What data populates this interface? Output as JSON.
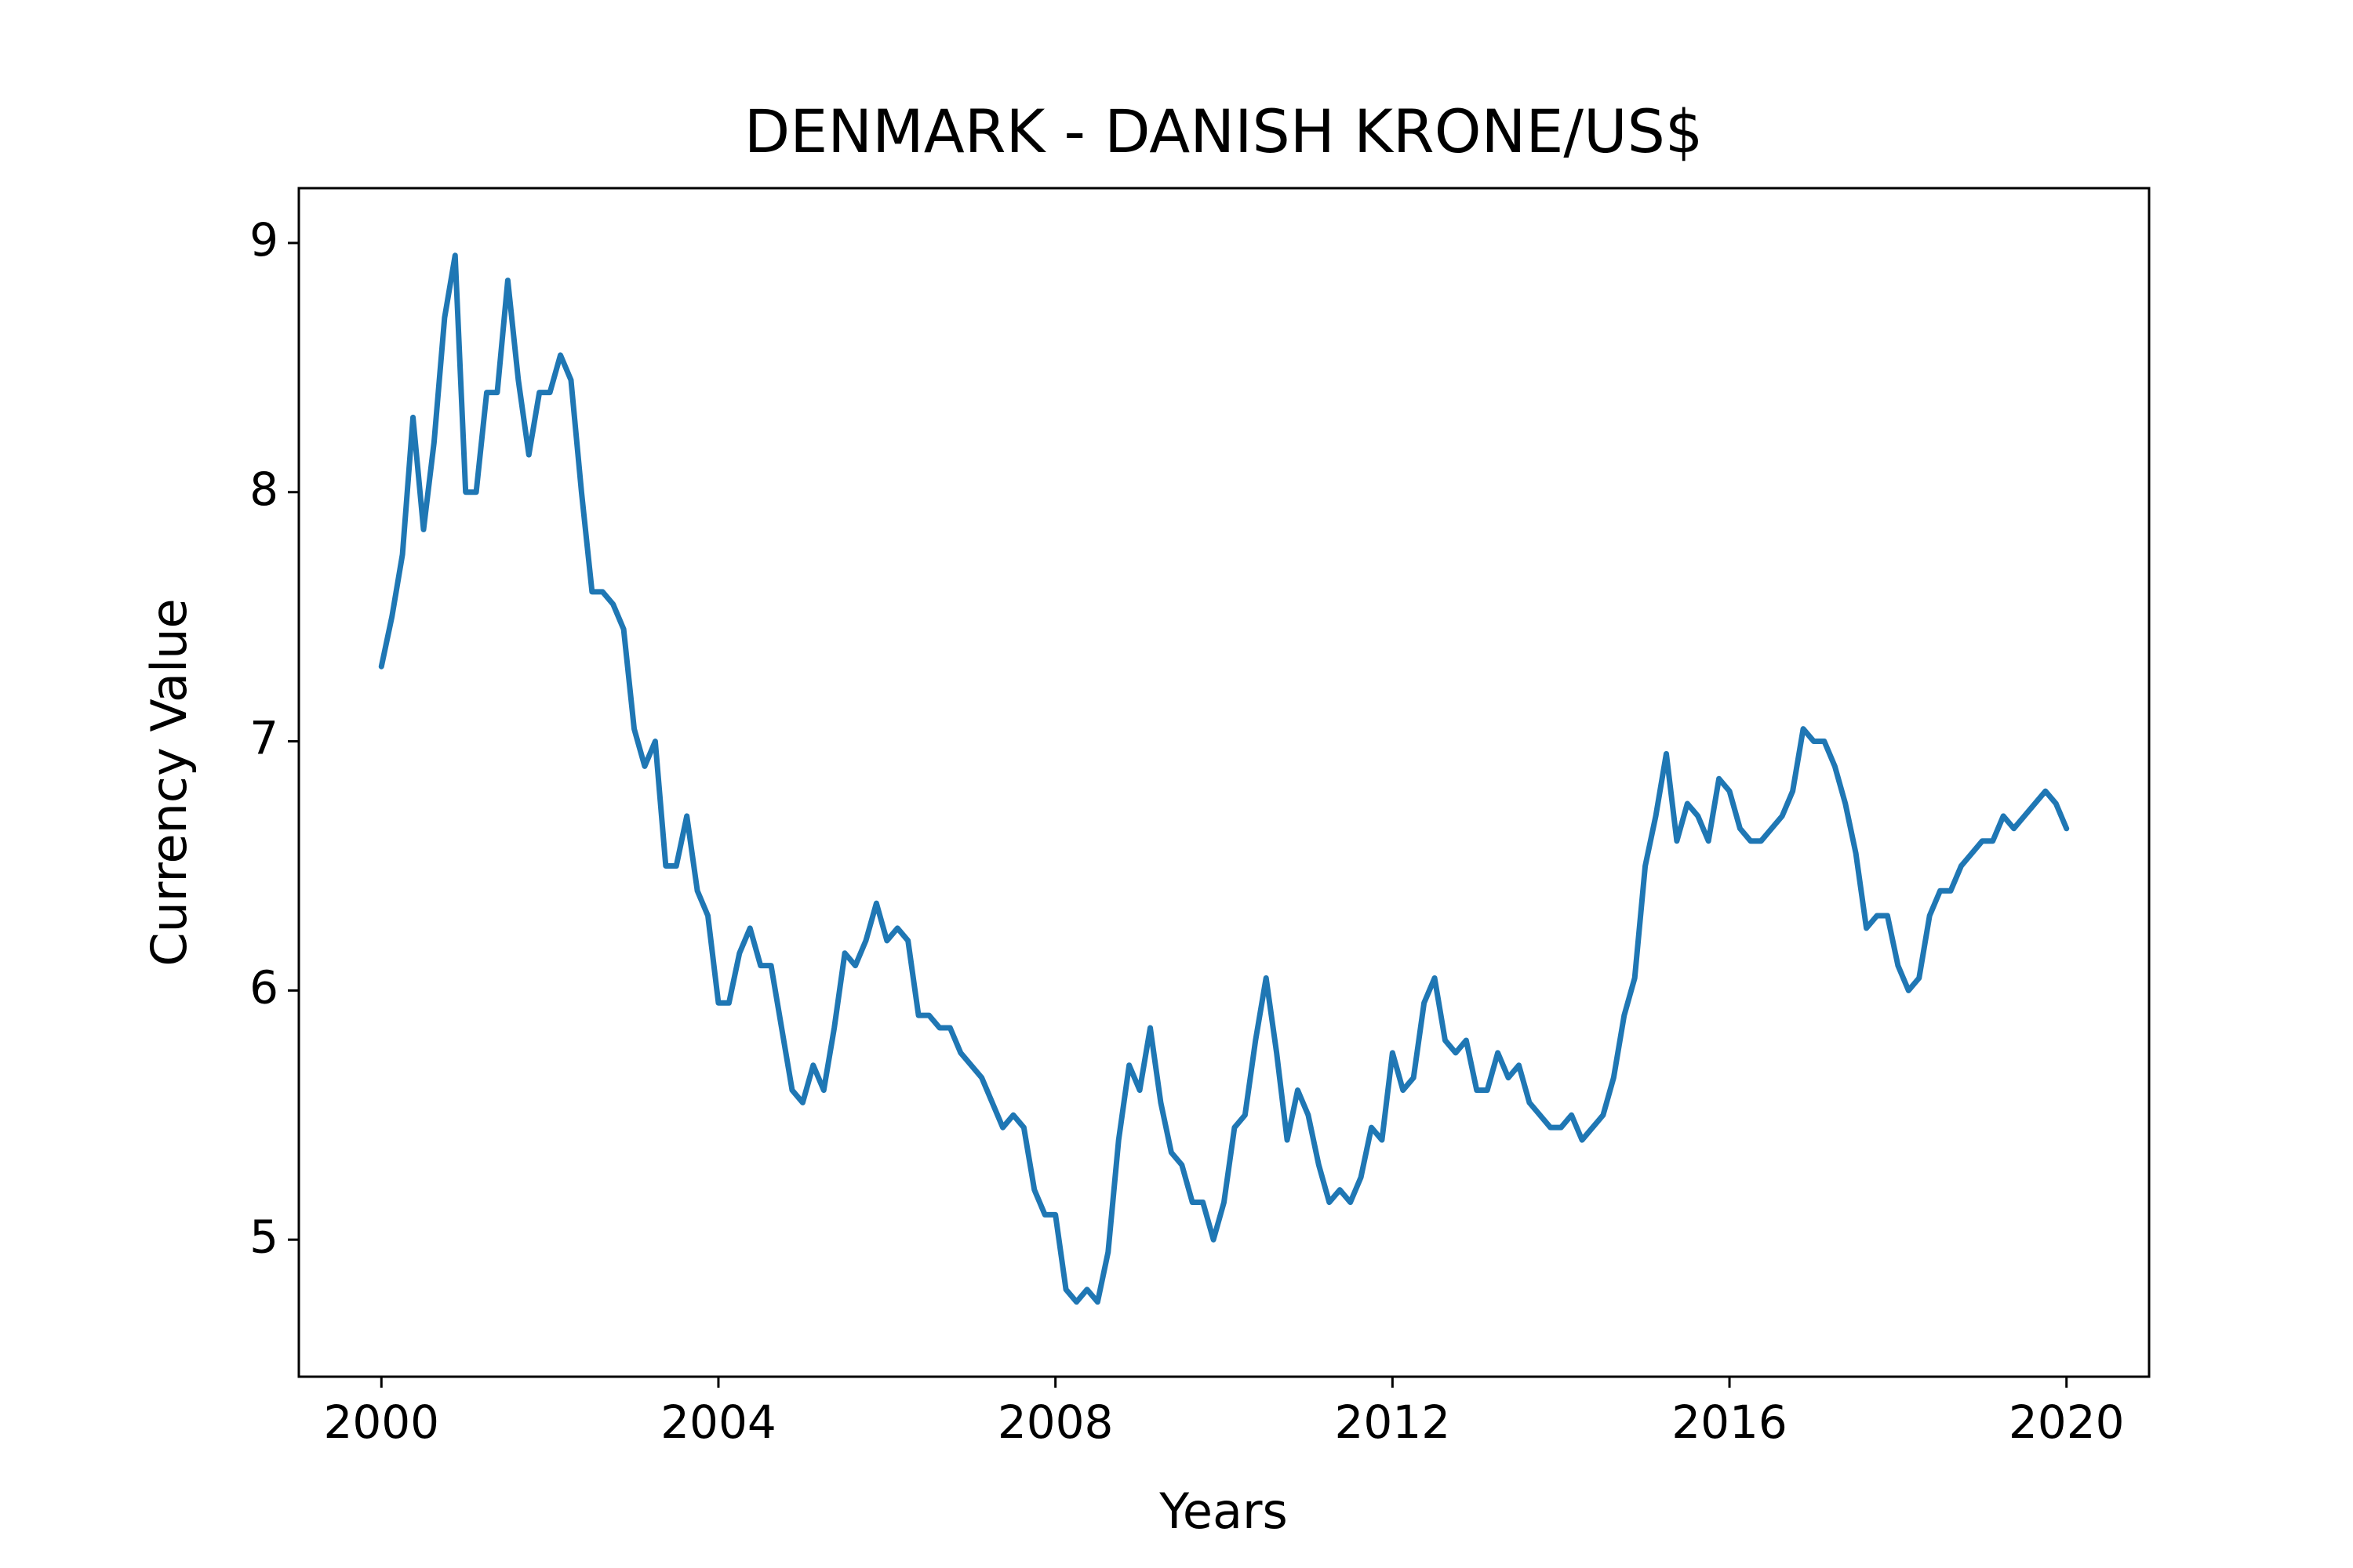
{
  "chart_data": {
    "type": "line",
    "title": "DENMARK - DANISH KRONE/US$",
    "xlabel": "Years",
    "ylabel": "Currency Value",
    "color": "#1f77b4",
    "xlim": [
      1999.02,
      2020.98
    ],
    "xticks": [
      2000,
      2004,
      2008,
      2012,
      2016,
      2020
    ],
    "ylim": [
      4.45,
      9.22
    ],
    "yticks": [
      5,
      6,
      7,
      8,
      9
    ],
    "x": [
      2000,
      2000.125,
      2000.25,
      2000.375,
      2000.5,
      2000.625,
      2000.75,
      2000.875,
      2001,
      2001.125,
      2001.25,
      2001.375,
      2001.5,
      2001.625,
      2001.75,
      2001.875,
      2002,
      2002.125,
      2002.25,
      2002.375,
      2002.5,
      2002.625,
      2002.75,
      2002.875,
      2003,
      2003.125,
      2003.25,
      2003.375,
      2003.5,
      2003.625,
      2003.75,
      2003.875,
      2004,
      2004.125,
      2004.25,
      2004.375,
      2004.5,
      2004.625,
      2004.75,
      2004.875,
      2005,
      2005.125,
      2005.25,
      2005.375,
      2005.5,
      2005.625,
      2005.75,
      2005.875,
      2006,
      2006.125,
      2006.25,
      2006.375,
      2006.5,
      2006.625,
      2006.75,
      2006.875,
      2007,
      2007.125,
      2007.25,
      2007.375,
      2007.5,
      2007.625,
      2007.75,
      2007.875,
      2008,
      2008.125,
      2008.25,
      2008.375,
      2008.5,
      2008.625,
      2008.75,
      2008.875,
      2009,
      2009.125,
      2009.25,
      2009.375,
      2009.5,
      2009.625,
      2009.75,
      2009.875,
      2010,
      2010.125,
      2010.25,
      2010.375,
      2010.5,
      2010.625,
      2010.75,
      2010.875,
      2011,
      2011.125,
      2011.25,
      2011.375,
      2011.5,
      2011.625,
      2011.75,
      2011.875,
      2012,
      2012.125,
      2012.25,
      2012.375,
      2012.5,
      2012.625,
      2012.75,
      2012.875,
      2013,
      2013.125,
      2013.25,
      2013.375,
      2013.5,
      2013.625,
      2013.75,
      2013.875,
      2014,
      2014.125,
      2014.25,
      2014.375,
      2014.5,
      2014.625,
      2014.75,
      2014.875,
      2015,
      2015.125,
      2015.25,
      2015.375,
      2015.5,
      2015.625,
      2015.75,
      2015.875,
      2016,
      2016.125,
      2016.25,
      2016.375,
      2016.5,
      2016.625,
      2016.75,
      2016.875,
      2017,
      2017.125,
      2017.25,
      2017.375,
      2017.5,
      2017.625,
      2017.75,
      2017.875,
      2018,
      2018.125,
      2018.25,
      2018.375,
      2018.5,
      2018.625,
      2018.75,
      2018.875,
      2019,
      2019.125,
      2019.25,
      2019.375,
      2019.5,
      2019.625,
      2019.75,
      2019.875,
      2020
    ],
    "values": [
      7.3,
      7.5,
      7.75,
      8.3,
      7.85,
      8.2,
      8.7,
      8.95,
      8.0,
      8.0,
      8.4,
      8.4,
      8.85,
      8.45,
      8.15,
      8.4,
      8.4,
      8.55,
      8.45,
      8.0,
      7.6,
      7.6,
      7.55,
      7.45,
      7.05,
      6.9,
      7.0,
      6.5,
      6.5,
      6.7,
      6.4,
      6.3,
      5.95,
      5.95,
      6.15,
      6.25,
      6.1,
      6.1,
      5.85,
      5.6,
      5.55,
      5.7,
      5.6,
      5.85,
      6.15,
      6.1,
      6.2,
      6.35,
      6.2,
      6.25,
      6.2,
      5.9,
      5.9,
      5.85,
      5.85,
      5.75,
      5.7,
      5.65,
      5.55,
      5.45,
      5.5,
      5.45,
      5.2,
      5.1,
      5.1,
      4.8,
      4.75,
      4.8,
      4.75,
      4.95,
      5.4,
      5.7,
      5.6,
      5.85,
      5.55,
      5.35,
      5.3,
      5.15,
      5.15,
      5.0,
      5.15,
      5.45,
      5.5,
      5.8,
      6.05,
      5.75,
      5.4,
      5.6,
      5.5,
      5.3,
      5.15,
      5.2,
      5.15,
      5.25,
      5.45,
      5.4,
      5.75,
      5.6,
      5.65,
      5.95,
      6.05,
      5.8,
      5.75,
      5.8,
      5.6,
      5.6,
      5.75,
      5.65,
      5.7,
      5.55,
      5.5,
      5.45,
      5.45,
      5.5,
      5.4,
      5.45,
      5.5,
      5.65,
      5.9,
      6.05,
      6.5,
      6.7,
      6.95,
      6.6,
      6.75,
      6.7,
      6.6,
      6.85,
      6.8,
      6.65,
      6.6,
      6.6,
      6.65,
      6.7,
      6.8,
      7.05,
      7.0,
      7.0,
      6.9,
      6.75,
      6.55,
      6.25,
      6.3,
      6.3,
      6.1,
      6.0,
      6.05,
      6.3,
      6.4,
      6.4,
      6.5,
      6.55,
      6.6,
      6.6,
      6.7,
      6.65,
      6.7,
      6.75,
      6.8,
      6.75,
      6.65
    ]
  }
}
